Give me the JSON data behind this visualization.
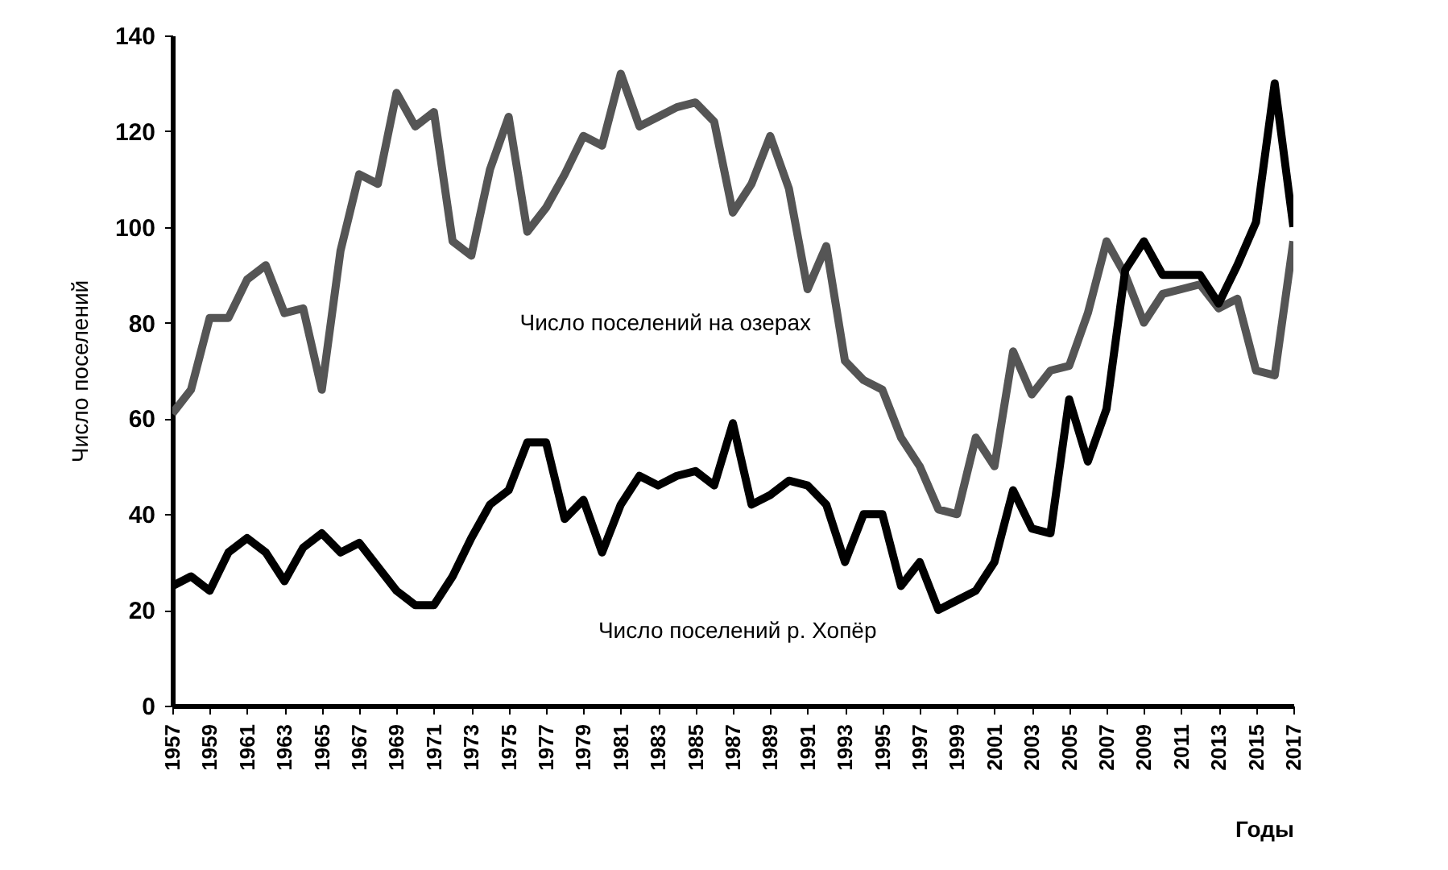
{
  "chart_data": {
    "type": "line",
    "xlabel": "Годы",
    "ylabel": "Число поселений",
    "x": [
      1957,
      1958,
      1959,
      1960,
      1961,
      1962,
      1963,
      1964,
      1965,
      1966,
      1967,
      1968,
      1969,
      1970,
      1971,
      1972,
      1973,
      1974,
      1975,
      1976,
      1977,
      1978,
      1979,
      1980,
      1981,
      1982,
      1983,
      1984,
      1985,
      1986,
      1987,
      1988,
      1989,
      1990,
      1991,
      1992,
      1993,
      1994,
      1995,
      1996,
      1997,
      1998,
      1999,
      2000,
      2001,
      2002,
      2003,
      2004,
      2005,
      2006,
      2007,
      2008,
      2009,
      2010,
      2011,
      2012,
      2013,
      2014,
      2015,
      2016,
      2017
    ],
    "series": [
      {
        "name": "Число поселений на озерах",
        "color": "#555555",
        "values": [
          61,
          66,
          81,
          81,
          89,
          92,
          82,
          83,
          66,
          95,
          111,
          109,
          128,
          121,
          124,
          97,
          94,
          112,
          123,
          99,
          104,
          111,
          119,
          117,
          132,
          121,
          123,
          125,
          126,
          122,
          103,
          109,
          119,
          108,
          87,
          96,
          72,
          68,
          66,
          56,
          50,
          41,
          40,
          56,
          50,
          74,
          65,
          70,
          71,
          82,
          97,
          90,
          80,
          86,
          87,
          88,
          83,
          85,
          70,
          69,
          97
        ]
      },
      {
        "name": "Число поселений р. Хопёр",
        "color": "#000000",
        "values": [
          25,
          27,
          24,
          32,
          35,
          32,
          26,
          33,
          36,
          32,
          34,
          29,
          24,
          21,
          21,
          27,
          35,
          42,
          45,
          55,
          55,
          39,
          43,
          32,
          42,
          48,
          46,
          48,
          49,
          46,
          59,
          42,
          44,
          47,
          46,
          42,
          30,
          40,
          40,
          25,
          30,
          20,
          22,
          24,
          30,
          45,
          37,
          36,
          64,
          51,
          62,
          91,
          97,
          90,
          90,
          90,
          84,
          92,
          101,
          130,
          100
        ]
      }
    ],
    "xlim": [
      1957,
      2017
    ],
    "xticks": [
      1957,
      1959,
      1961,
      1963,
      1965,
      1967,
      1969,
      1971,
      1973,
      1975,
      1977,
      1979,
      1981,
      1983,
      1985,
      1987,
      1989,
      1991,
      1993,
      1995,
      1997,
      1999,
      2001,
      2003,
      2005,
      2007,
      2009,
      2011,
      2013,
      2015,
      2017
    ],
    "ylim": [
      0,
      140
    ],
    "yticks": [
      0,
      20,
      40,
      60,
      80,
      100,
      120,
      140
    ],
    "grid": false,
    "legend": false,
    "marker": "none",
    "line_style": "solid"
  }
}
